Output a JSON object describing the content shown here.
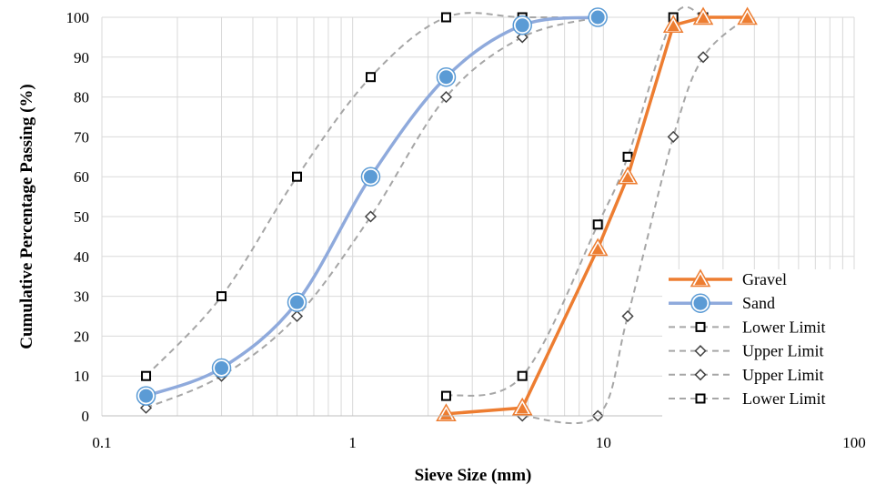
{
  "chart_data": {
    "type": "scatter",
    "title": "",
    "xlabel": "Sieve Size (mm)",
    "ylabel": "Cumulative Percentage Passing (%)",
    "x_scale": "log",
    "xlim": [
      0.1,
      100
    ],
    "ylim": [
      0,
      100
    ],
    "x_ticks": [
      "0.1",
      "1",
      "10",
      "100"
    ],
    "y_ticks": [
      "0",
      "10",
      "20",
      "30",
      "40",
      "50",
      "60",
      "70",
      "80",
      "90",
      "100"
    ],
    "grid": true,
    "legend_position": "bottom-right",
    "series": [
      {
        "name": "Gravel",
        "color": "#ED7D31",
        "marker": "triangle",
        "line": "solid",
        "x": [
          2.36,
          4.75,
          9.5,
          12.5,
          19,
          25,
          37.5
        ],
        "y": [
          0.5,
          2,
          42,
          60,
          98,
          100,
          100
        ]
      },
      {
        "name": "Sand",
        "color": "#8FAADC",
        "marker": "circle",
        "line": "solid",
        "x": [
          0.15,
          0.3,
          0.6,
          1.18,
          2.36,
          4.75,
          9.5
        ],
        "y": [
          5,
          12,
          28.5,
          60,
          85,
          98,
          100
        ]
      },
      {
        "name": "Lower Limit",
        "color": "#A6A6A6",
        "marker": "square",
        "line": "dashed",
        "x": [
          0.15,
          0.3,
          0.6,
          1.18,
          2.36,
          4.75,
          9.5
        ],
        "y": [
          10,
          30,
          60,
          85,
          100,
          100,
          100
        ]
      },
      {
        "name": "Upper Limit",
        "color": "#A6A6A6",
        "marker": "diamond",
        "line": "dashed",
        "x": [
          0.15,
          0.3,
          0.6,
          1.18,
          2.36,
          4.75,
          9.5
        ],
        "y": [
          2,
          10,
          25,
          50,
          80,
          95,
          100
        ]
      },
      {
        "name": "Upper Limit",
        "color": "#A6A6A6",
        "marker": "diamond",
        "line": "dashed",
        "x": [
          4.75,
          9.5,
          12.5,
          19,
          25,
          37.5
        ],
        "y": [
          0,
          0,
          25,
          70,
          90,
          100
        ]
      },
      {
        "name": "Lower Limit",
        "color": "#A6A6A6",
        "marker": "square",
        "line": "dashed",
        "x": [
          2.36,
          4.75,
          9.5,
          12.5,
          19,
          25
        ],
        "y": [
          5,
          10,
          48,
          65,
          100,
          100
        ]
      }
    ]
  }
}
